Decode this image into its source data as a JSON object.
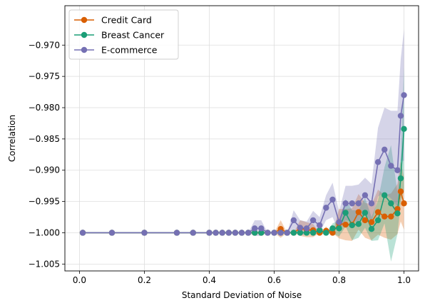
{
  "chart_data": {
    "type": "line",
    "title": "",
    "xlabel": "Standard Deviation of Noise",
    "ylabel": "Correlation",
    "xlim": [
      -0.045,
      1.045
    ],
    "ylim": [
      -1.0061,
      -0.9637
    ],
    "xticks": [
      0.0,
      0.2,
      0.4,
      0.6,
      0.8,
      1.0
    ],
    "xtick_labels": [
      "0.0",
      "0.2",
      "0.4",
      "0.6",
      "0.8",
      "1.0"
    ],
    "yticks": [
      -1.005,
      -1.0,
      -0.995,
      -0.99,
      -0.985,
      -0.98,
      -0.975,
      -0.97
    ],
    "ytick_labels": [
      "−1.005",
      "−1.000",
      "−0.995",
      "−0.990",
      "−0.985",
      "−0.980",
      "−0.975",
      "−0.970"
    ],
    "grid": true,
    "legend_position": "top-left",
    "series": [
      {
        "name": "Credit Card",
        "color": "#d95f02",
        "x": [
          0.01,
          0.1,
          0.2,
          0.3,
          0.35,
          0.4,
          0.42,
          0.44,
          0.46,
          0.48,
          0.5,
          0.52,
          0.54,
          0.56,
          0.58,
          0.6,
          0.62,
          0.64,
          0.66,
          0.68,
          0.7,
          0.72,
          0.74,
          0.76,
          0.78,
          0.8,
          0.82,
          0.84,
          0.86,
          0.88,
          0.9,
          0.92,
          0.94,
          0.96,
          0.98,
          0.99,
          1.0
        ],
        "y": [
          -1.0,
          -1.0,
          -1.0,
          -1.0,
          -1.0,
          -1.0,
          -1.0,
          -1.0,
          -1.0,
          -1.0,
          -1.0,
          -1.0,
          -1.0,
          -1.0,
          -1.0,
          -1.0,
          -0.9994,
          -1.0,
          -1.0,
          -0.9993,
          -0.9995,
          -0.9996,
          -1.0,
          -0.9997,
          -1.0,
          -0.9985,
          -0.9987,
          -0.9987,
          -0.9967,
          -0.998,
          -0.9983,
          -0.9967,
          -0.9974,
          -0.9974,
          -0.9962,
          -0.9934,
          -0.9953
        ],
        "band_lower": [
          -1.0,
          -1.0,
          -1.0,
          -1.0,
          -1.0,
          -1.0,
          -1.0,
          -1.0,
          -1.0,
          -1.0,
          -1.0,
          -1.0,
          -1.0,
          -1.0,
          -1.0,
          -1.0,
          -1.0008,
          -1.0,
          -1.0,
          -1.0005,
          -1.0007,
          -1.0007,
          -1.0,
          -1.0004,
          -1.0,
          -1.0009,
          -1.0012,
          -1.0013,
          -0.9995,
          -1.0008,
          -1.0012,
          -1.0003,
          -1.0008,
          -1.0011,
          -1.0002,
          -0.9982,
          -0.9995
        ],
        "band_upper": [
          -1.0,
          -1.0,
          -1.0,
          -1.0,
          -1.0,
          -1.0,
          -1.0,
          -1.0,
          -1.0,
          -1.0,
          -1.0,
          -1.0,
          -1.0,
          -1.0,
          -1.0,
          -1.0,
          -0.998,
          -1.0,
          -1.0,
          -0.998,
          -0.9983,
          -0.9986,
          -1.0,
          -0.999,
          -1.0,
          -0.9962,
          -0.9962,
          -0.9961,
          -0.9938,
          -0.9952,
          -0.9955,
          -0.9931,
          -0.994,
          -0.9937,
          -0.9922,
          -0.9886,
          -0.9911
        ]
      },
      {
        "name": "Breast Cancer",
        "color": "#1b9e77",
        "x": [
          0.01,
          0.1,
          0.2,
          0.3,
          0.35,
          0.4,
          0.42,
          0.44,
          0.46,
          0.48,
          0.5,
          0.52,
          0.54,
          0.56,
          0.58,
          0.6,
          0.62,
          0.64,
          0.66,
          0.68,
          0.7,
          0.72,
          0.74,
          0.76,
          0.78,
          0.8,
          0.82,
          0.84,
          0.86,
          0.88,
          0.9,
          0.92,
          0.94,
          0.96,
          0.98,
          0.99,
          1.0
        ],
        "y": [
          -1.0,
          -1.0,
          -1.0,
          -1.0,
          -1.0,
          -1.0,
          -1.0,
          -1.0,
          -1.0,
          -1.0,
          -1.0,
          -1.0,
          -1.0,
          -1.0,
          -1.0,
          -1.0,
          -1.0,
          -1.0,
          -1.0,
          -1.0,
          -1.0,
          -1.0,
          -0.9996,
          -1.0,
          -0.9993,
          -0.9993,
          -0.9968,
          -0.9988,
          -0.9986,
          -0.9968,
          -0.9994,
          -0.998,
          -0.994,
          -0.9953,
          -0.9969,
          -0.9913,
          -0.9834
        ],
        "band_lower": [
          -1.0,
          -1.0,
          -1.0,
          -1.0,
          -1.0,
          -1.0,
          -1.0,
          -1.0,
          -1.0,
          -1.0,
          -1.0,
          -1.0,
          -1.0,
          -1.0,
          -1.0,
          -1.0,
          -1.0,
          -1.0,
          -1.0,
          -1.0,
          -1.0,
          -1.0,
          -1.0004,
          -1.0,
          -1.0001,
          -1.0006,
          -0.999,
          -1.0012,
          -1.0008,
          -0.9992,
          -1.0013,
          -1.0012,
          -0.9985,
          -1.0046,
          -1.0002,
          -0.9951,
          -0.9932
        ]
      },
      {
        "name": "E-commerce",
        "color": "#7570b3",
        "x": [
          0.01,
          0.1,
          0.2,
          0.3,
          0.35,
          0.4,
          0.42,
          0.44,
          0.46,
          0.48,
          0.5,
          0.52,
          0.54,
          0.56,
          0.58,
          0.6,
          0.62,
          0.64,
          0.66,
          0.68,
          0.7,
          0.72,
          0.74,
          0.76,
          0.78,
          0.8,
          0.82,
          0.84,
          0.86,
          0.88,
          0.9,
          0.92,
          0.94,
          0.96,
          0.98,
          0.99,
          1.0
        ],
        "y": [
          -1.0,
          -1.0,
          -1.0,
          -1.0,
          -1.0,
          -1.0,
          -1.0,
          -1.0,
          -1.0,
          -1.0,
          -1.0,
          -1.0,
          -0.9993,
          -0.9993,
          -1.0,
          -1.0,
          -1.0,
          -1.0,
          -0.998,
          -0.9992,
          -0.9993,
          -0.998,
          -0.9988,
          -0.996,
          -0.9947,
          -0.9983,
          -0.9953,
          -0.9953,
          -0.9953,
          -0.994,
          -0.9953,
          -0.9887,
          -0.9867,
          -0.9893,
          -0.99,
          -0.9813,
          -0.978
        ],
        "band_lower": [
          -1.0,
          -1.0,
          -1.0,
          -1.0,
          -1.0,
          -1.0,
          -1.0,
          -1.0,
          -1.0,
          -1.0,
          -1.0,
          -1.0,
          -1.0005,
          -1.0005,
          -1.0,
          -1.0,
          -1.0,
          -1.0,
          -0.9996,
          -1.0003,
          -1.0004,
          -0.9995,
          -1.0,
          -0.998,
          -0.9975,
          -1.0,
          -0.998,
          -0.9982,
          -0.9982,
          -0.9968,
          -0.9984,
          -0.9942,
          -0.9936,
          -0.9945,
          -0.9958,
          -0.9885,
          -0.9885
        ],
        "band_upper": [
          -1.0,
          -1.0,
          -1.0,
          -1.0,
          -1.0,
          -1.0,
          -1.0,
          -1.0,
          -1.0,
          -1.0,
          -1.0,
          -1.0,
          -0.998,
          -0.998,
          -1.0,
          -1.0,
          -1.0,
          -1.0,
          -0.9964,
          -0.998,
          -0.9982,
          -0.9965,
          -0.9975,
          -0.994,
          -0.992,
          -0.9966,
          -0.9925,
          -0.9925,
          -0.9923,
          -0.9912,
          -0.9922,
          -0.9832,
          -0.98,
          -0.9805,
          -0.9805,
          -0.9722,
          -0.9675
        ]
      }
    ]
  }
}
